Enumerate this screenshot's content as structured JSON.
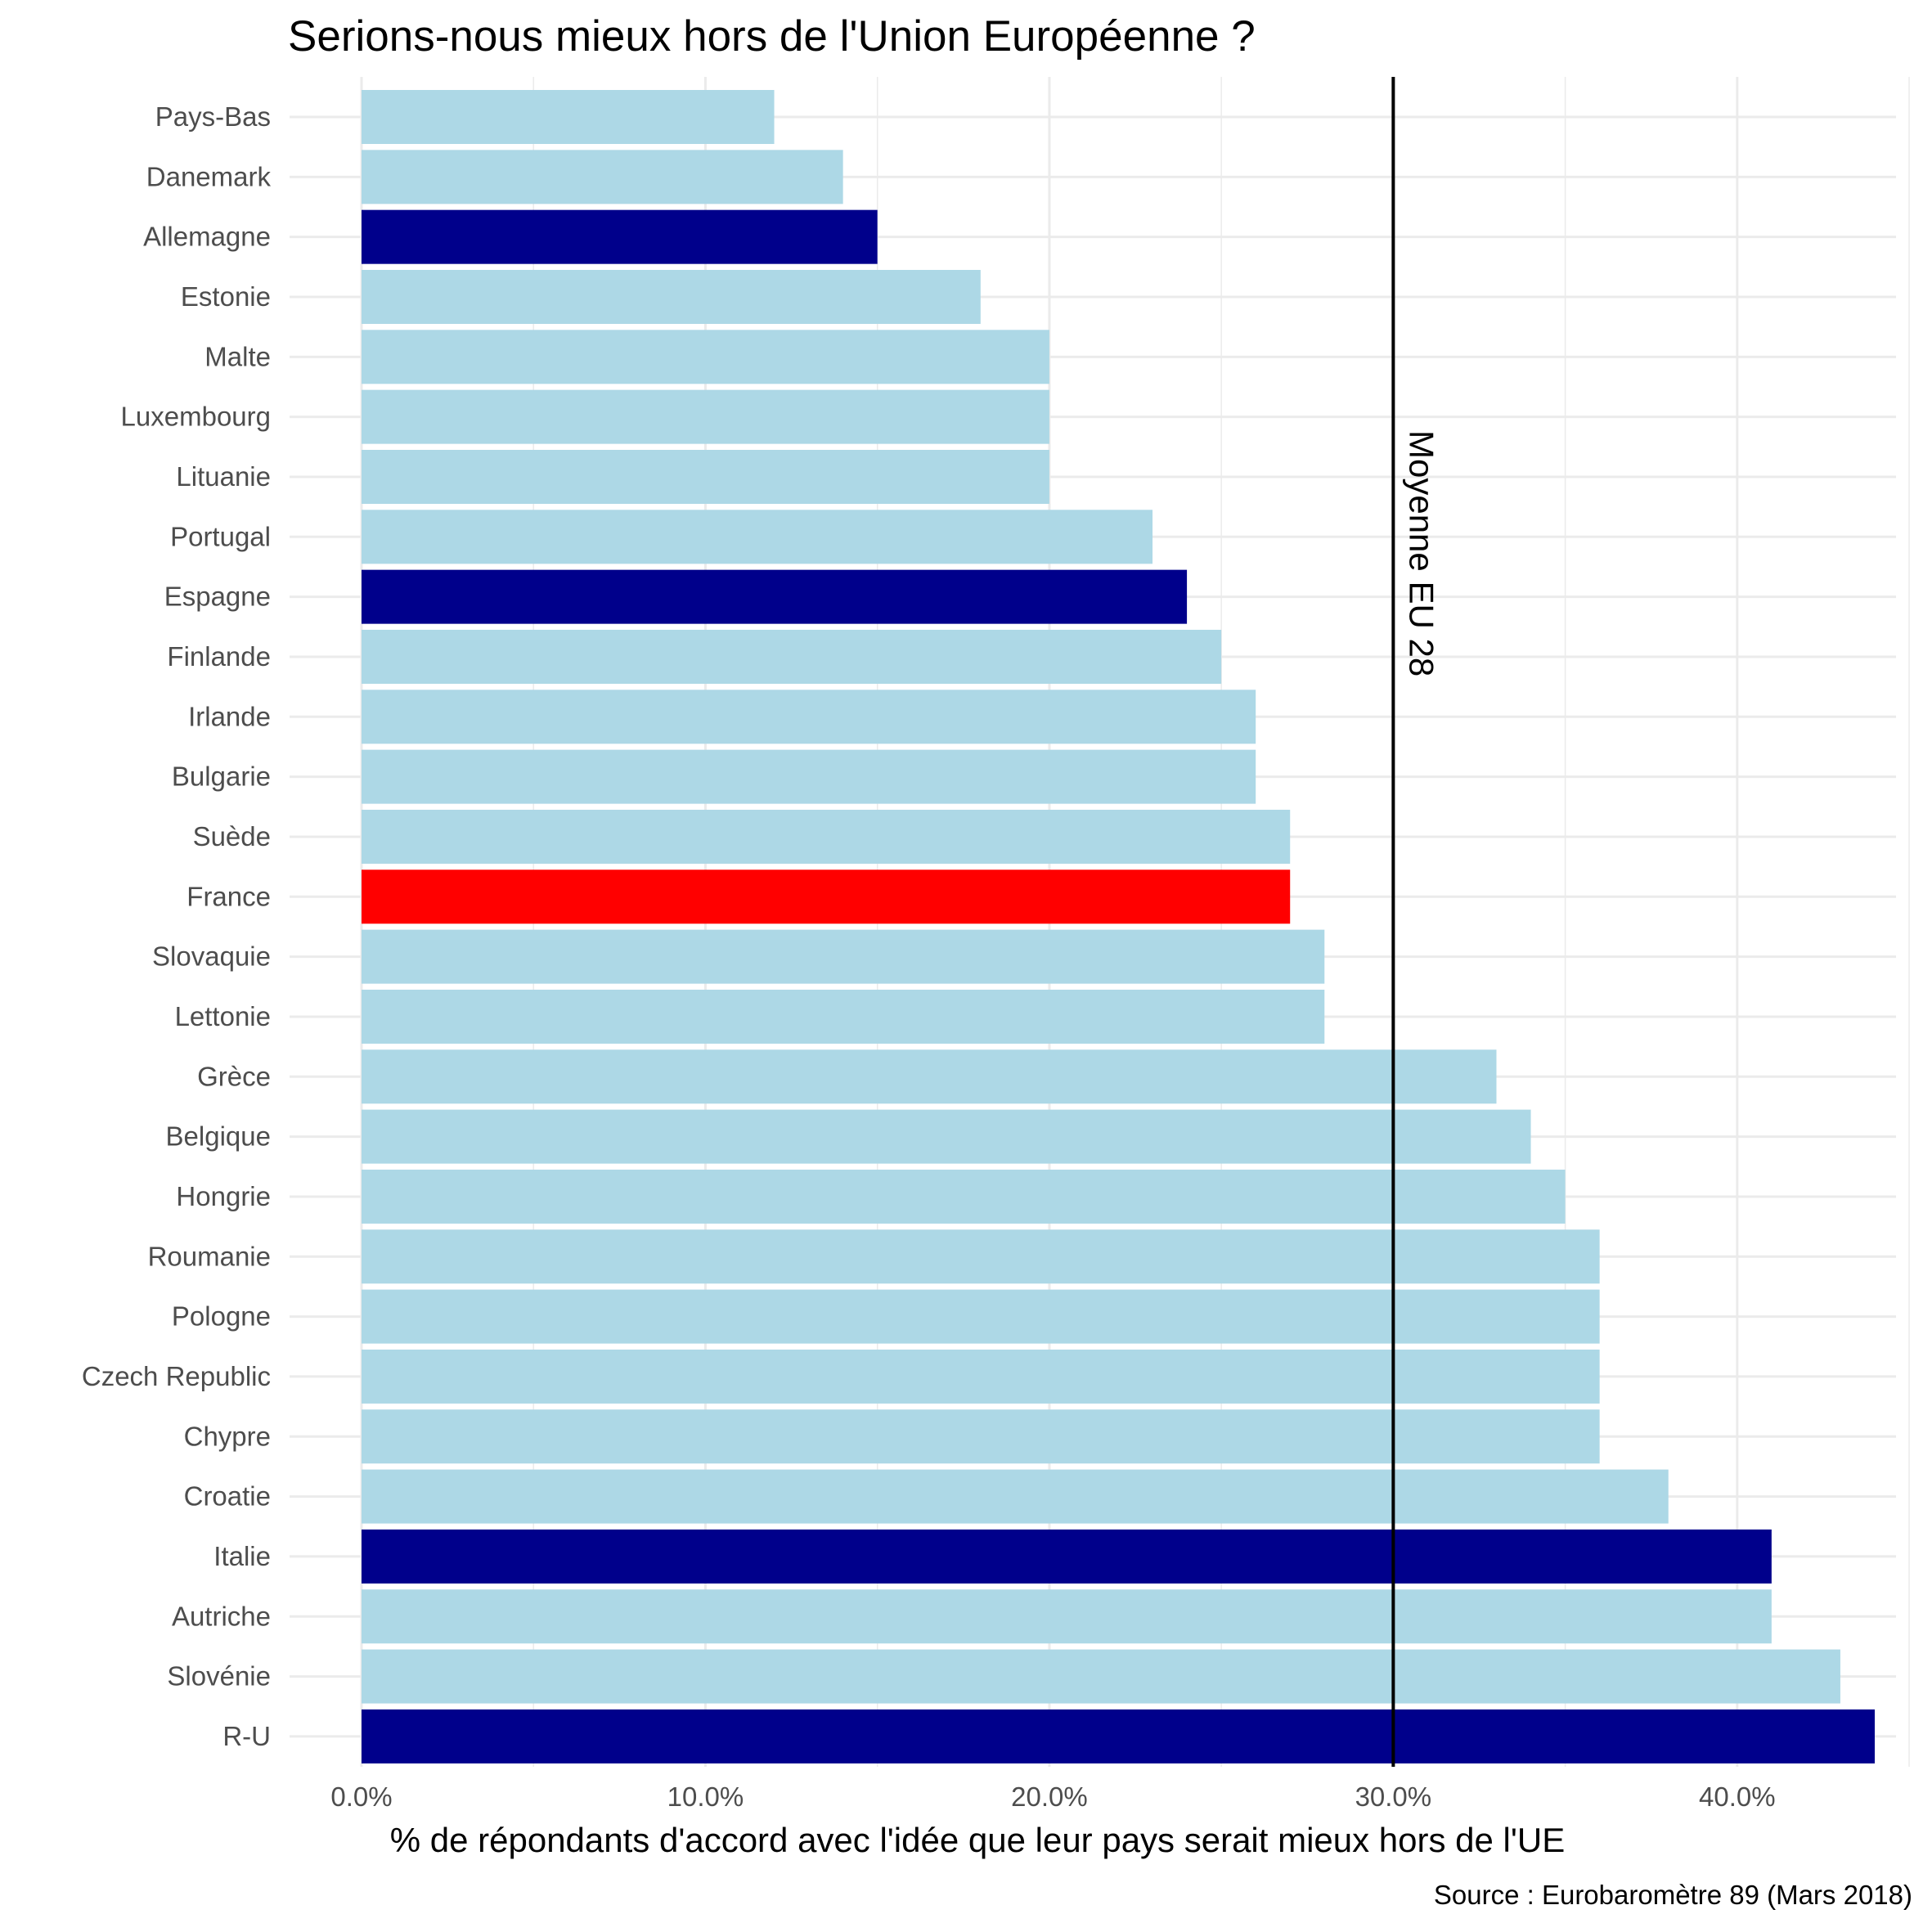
{
  "chart_data": {
    "type": "bar",
    "orientation": "horizontal",
    "title": "Serions-nous mieux hors de l'Union Européenne ?",
    "xlabel": "% de répondants d'accord avec l'idée que leur pays serait mieux hors de l'UE",
    "ylabel": "",
    "caption": "Source : Eurobaromètre 89 (Mars 2018)",
    "xlim": [
      0,
      0.45
    ],
    "x_ticks": [
      0,
      0.1,
      0.2,
      0.3,
      0.4
    ],
    "x_tick_labels": [
      "0.0%",
      "10.0%",
      "20.0%",
      "30.0%",
      "40.0%"
    ],
    "grid": true,
    "reference_line": {
      "value": 0.3,
      "label": "Moyenne EU 28",
      "color": "#000000"
    },
    "categories": [
      "Pays-Bas",
      "Danemark",
      "Allemagne",
      "Estonie",
      "Malte",
      "Luxembourg",
      "Lituanie",
      "Portugal",
      "Espagne",
      "Finlande",
      "Irlande",
      "Bulgarie",
      "Suède",
      "France",
      "Slovaquie",
      "Lettonie",
      "Grèce",
      "Belgique",
      "Hongrie",
      "Roumanie",
      "Pologne",
      "Czech Republic",
      "Chypre",
      "Croatie",
      "Italie",
      "Autriche",
      "Slovénie",
      "R-U"
    ],
    "values": [
      0.12,
      0.14,
      0.15,
      0.18,
      0.2,
      0.2,
      0.2,
      0.23,
      0.24,
      0.25,
      0.26,
      0.26,
      0.27,
      0.27,
      0.28,
      0.28,
      0.33,
      0.34,
      0.35,
      0.36,
      0.36,
      0.36,
      0.36,
      0.38,
      0.41,
      0.41,
      0.43,
      0.44
    ],
    "bar_colors": [
      "#add8e6",
      "#add8e6",
      "#00008b",
      "#add8e6",
      "#add8e6",
      "#add8e6",
      "#add8e6",
      "#add8e6",
      "#00008b",
      "#add8e6",
      "#add8e6",
      "#add8e6",
      "#add8e6",
      "#ff0000",
      "#add8e6",
      "#add8e6",
      "#add8e6",
      "#add8e6",
      "#add8e6",
      "#add8e6",
      "#add8e6",
      "#add8e6",
      "#add8e6",
      "#add8e6",
      "#00008b",
      "#add8e6",
      "#add8e6",
      "#00008b"
    ],
    "colors": {
      "default": "#add8e6",
      "highlight_big": "#00008b",
      "highlight_france": "#ff0000",
      "grid": "#ebebeb"
    }
  }
}
